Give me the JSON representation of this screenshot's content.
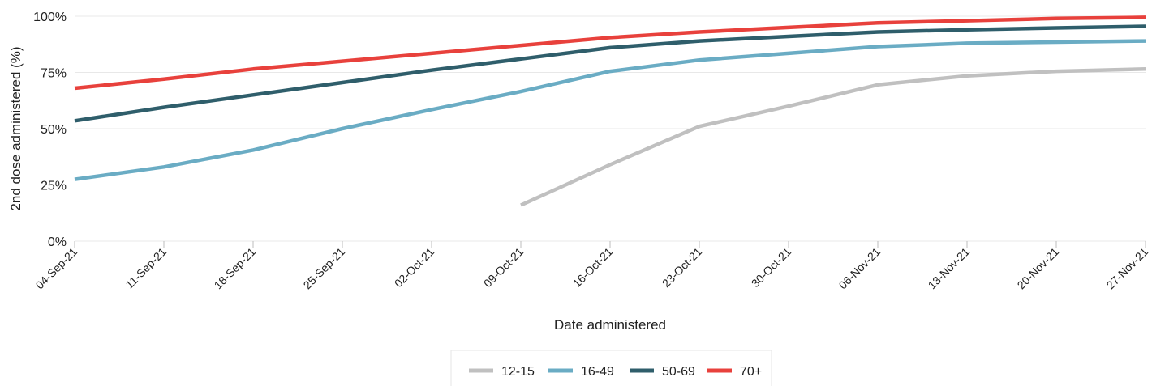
{
  "chart_data": {
    "type": "line",
    "title": "",
    "xlabel": "Date administered",
    "ylabel": "2nd dose administered (%)",
    "ylim": [
      0,
      100
    ],
    "yticks": [
      0,
      25,
      50,
      75,
      100
    ],
    "ytick_labels": [
      "0%",
      "25%",
      "50%",
      "75%",
      "100%"
    ],
    "x": [
      "04-Sep-21",
      "11-Sep-21",
      "18-Sep-21",
      "25-Sep-21",
      "02-Oct-21",
      "09-Oct-21",
      "16-Oct-21",
      "23-Oct-21",
      "30-Oct-21",
      "06-Nov-21",
      "13-Nov-21",
      "20-Nov-21",
      "27-Nov-21"
    ],
    "grid": "horizontal",
    "legend_position": "bottom",
    "series": [
      {
        "name": "12-15",
        "color": "#c0c0c0",
        "values": [
          null,
          null,
          null,
          null,
          null,
          16,
          34,
          51,
          60,
          69.5,
          73.5,
          75.5,
          76.5
        ]
      },
      {
        "name": "16-49",
        "color": "#6aacc4",
        "values": [
          27.5,
          33,
          40.5,
          50,
          58.5,
          66.5,
          75.5,
          80.5,
          83.5,
          86.5,
          88,
          88.5,
          89
        ]
      },
      {
        "name": "50-69",
        "color": "#2f5e6b",
        "values": [
          53.5,
          59.5,
          65,
          70.5,
          76,
          81,
          86,
          89,
          91,
          93,
          94,
          94.8,
          95.5
        ]
      },
      {
        "name": "70+",
        "color": "#e8413c",
        "values": [
          68,
          72,
          76.5,
          80,
          83.5,
          87,
          90.5,
          93,
          95,
          97,
          98,
          99,
          99.5
        ]
      }
    ]
  }
}
